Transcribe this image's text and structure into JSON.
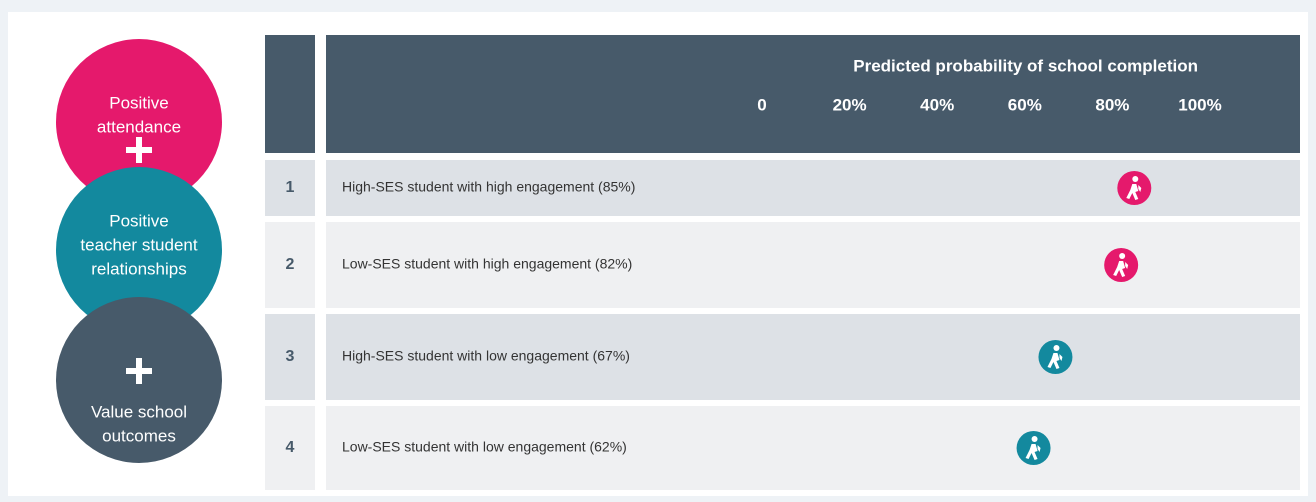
{
  "chart_data": {
    "type": "dot",
    "title": "Predicted probability of school completion",
    "badges": [
      [
        "Positive",
        "attendance"
      ],
      [
        "Positive",
        "teacher student",
        "relationships"
      ],
      [
        "Value school",
        "outcomes"
      ]
    ],
    "row_numbers": [
      1,
      2,
      3,
      4
    ],
    "categories": [
      "High-SES student with high engagement (85%)",
      "Low-SES student with high engagement (82%)",
      "High-SES student with low engagement (67%)",
      "Low-SES student with low engagement (62%)"
    ],
    "values": [
      85,
      82,
      67,
      62
    ],
    "colors": [
      "#e5196c",
      "#e5196c",
      "#13899e",
      "#13899e"
    ],
    "xlim": [
      0,
      100
    ],
    "xticks": [
      0,
      {
        "value": 20,
        "label": "20%"
      },
      {
        "value": 40,
        "label": "40%"
      },
      {
        "value": 60,
        "label": "60%"
      },
      {
        "value": 80,
        "label": "80%"
      },
      {
        "value": 100,
        "label": "100%"
      }
    ]
  }
}
